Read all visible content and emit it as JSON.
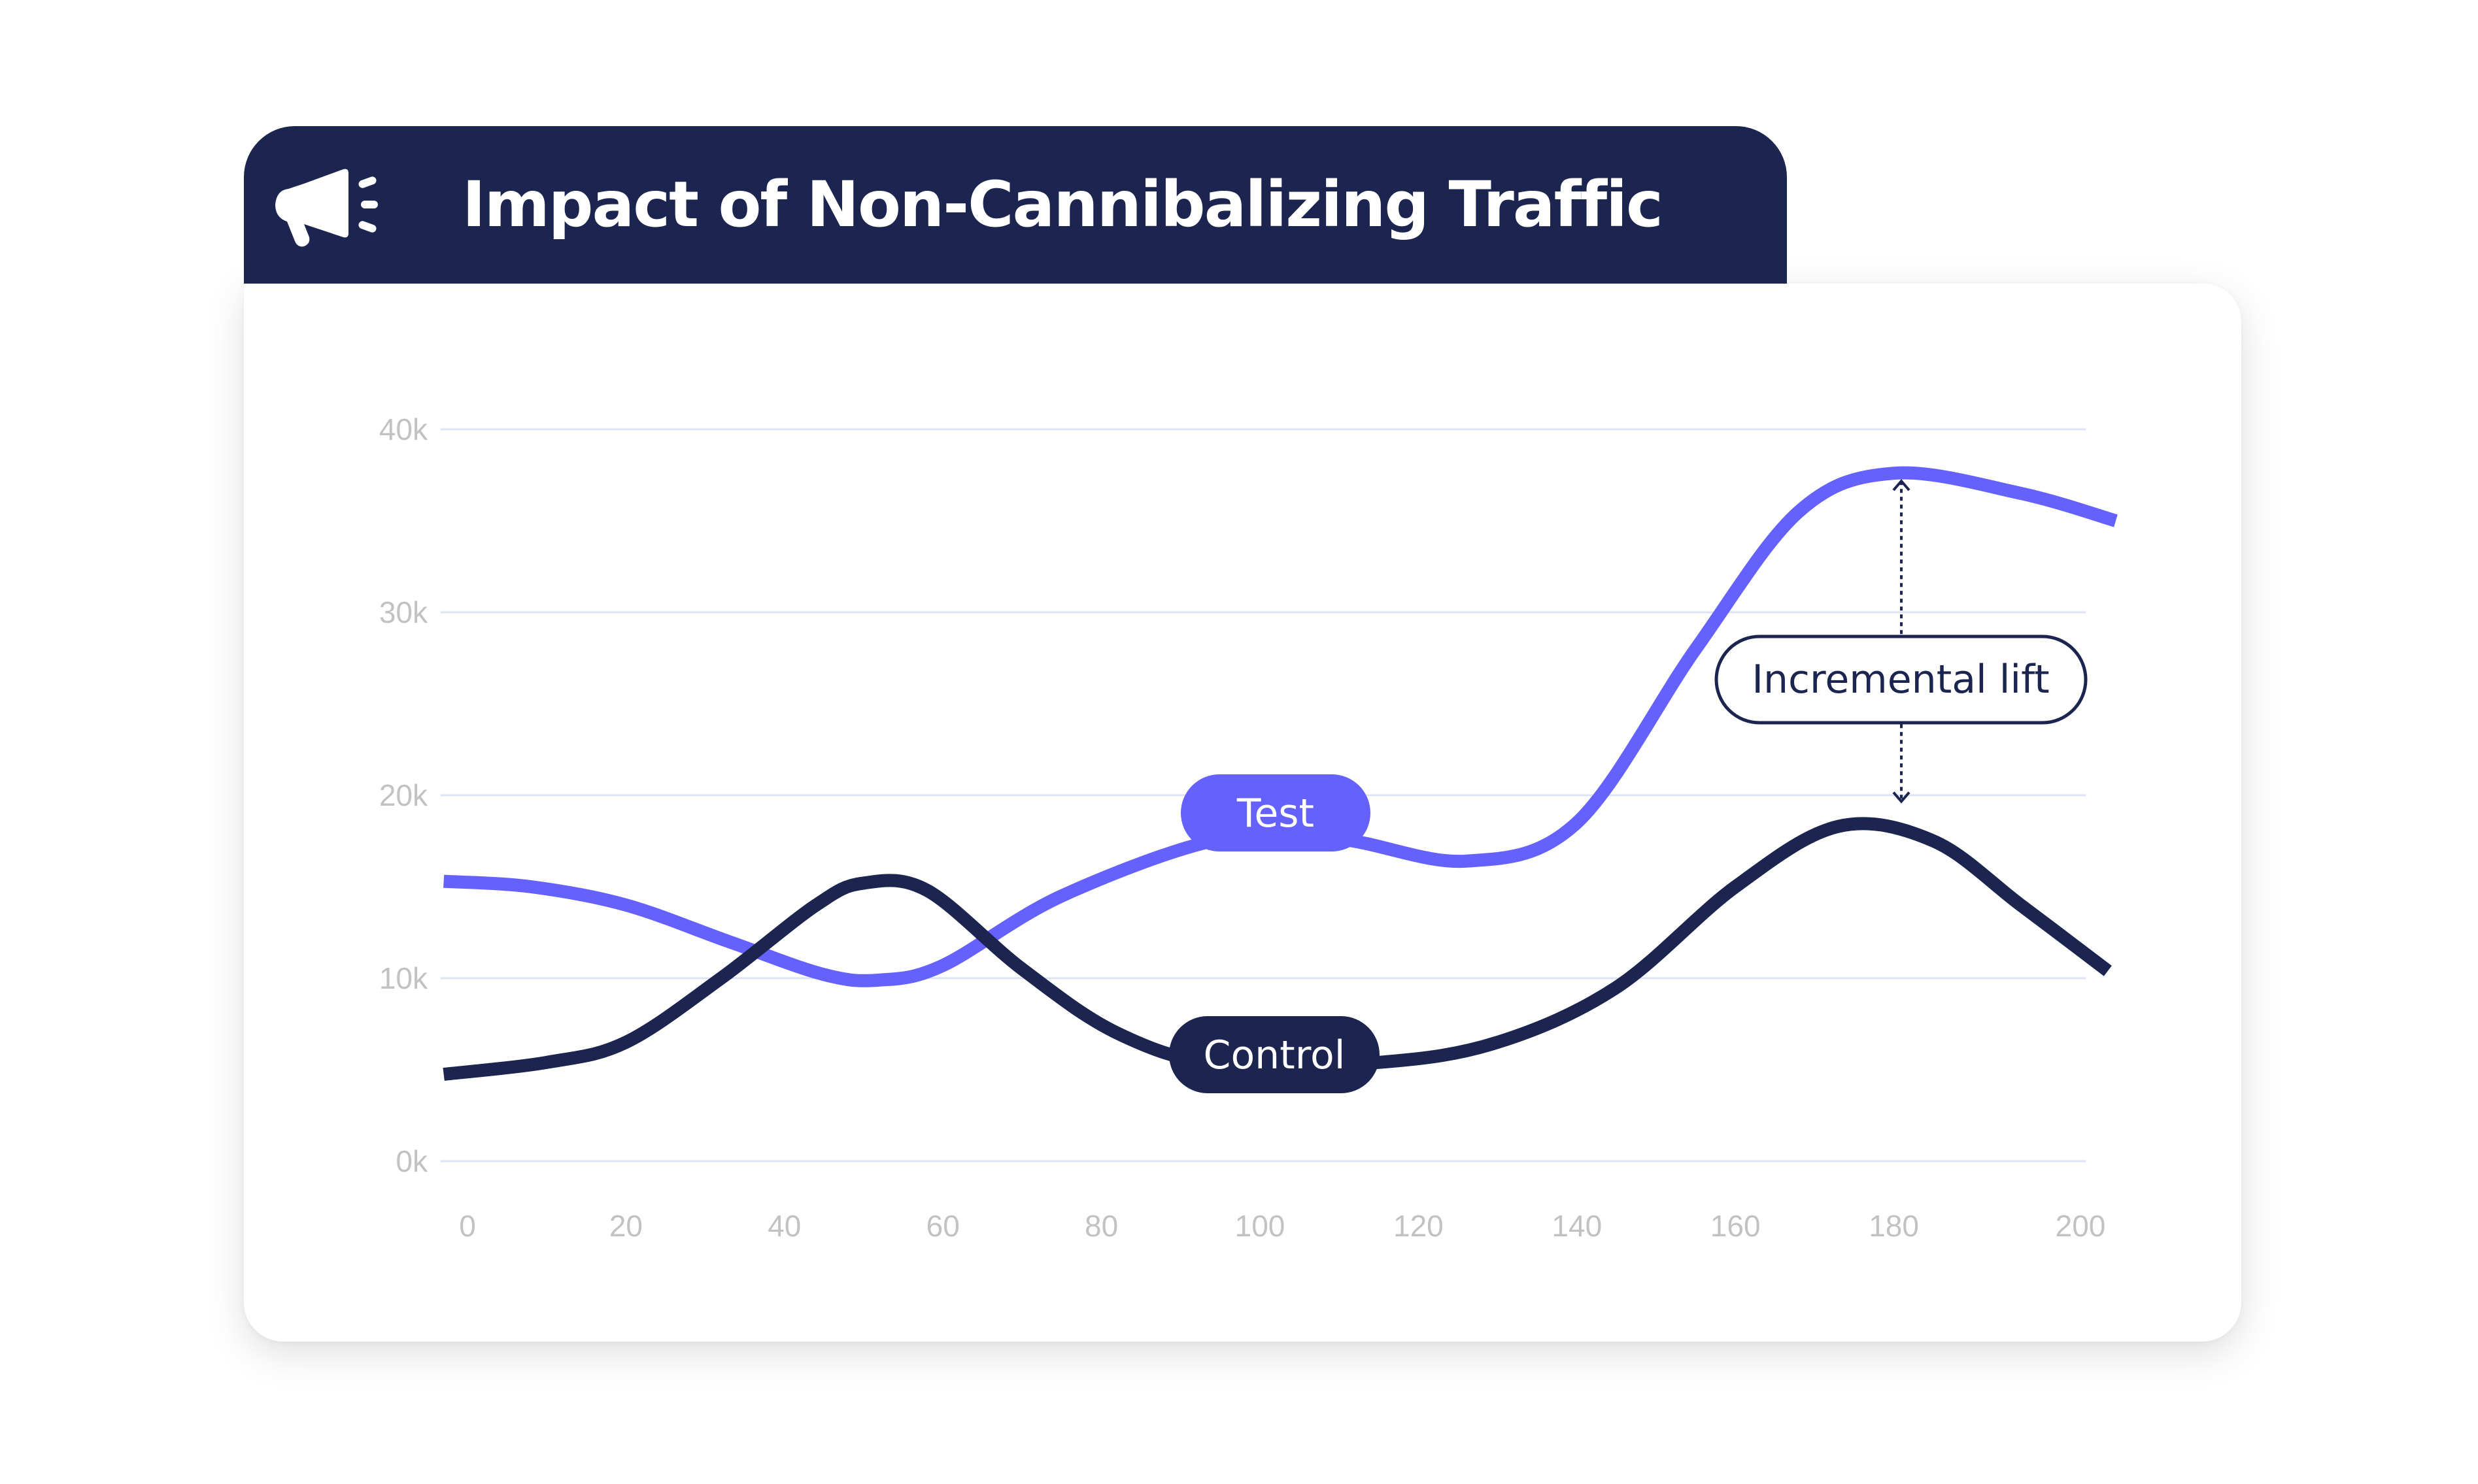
{
  "header": {
    "icon": "megaphone-icon",
    "title": "Impact of Non-Cannibalizing Traffic"
  },
  "colors": {
    "header_bg": "#1B2550",
    "test": "#6461FC",
    "control": "#1B2550",
    "grid": "#DCE3F3",
    "tick": "#C2C2C2"
  },
  "chart_data": {
    "type": "line",
    "title": "Impact of Non-Cannibalizing Traffic",
    "xlabel": "",
    "ylabel": "",
    "xlim": [
      0,
      200
    ],
    "ylim": [
      0,
      40000
    ],
    "grid": true,
    "x_ticks": [
      "0",
      "20",
      "40",
      "60",
      "80",
      "100",
      "120",
      "140",
      "160",
      "180",
      "200"
    ],
    "y_ticks": [
      "0k",
      "10k",
      "20k",
      "30k",
      "40k"
    ],
    "series": [
      {
        "name": "Test",
        "label": "Test",
        "x": [
          -3,
          8,
          20,
          33,
          45,
          52,
          60,
          75,
          95,
          110,
          126,
          140,
          155,
          168,
          180,
          196,
          208
        ],
        "values": [
          15300,
          15000,
          14000,
          12000,
          10200,
          9900,
          10700,
          14500,
          17600,
          17600,
          16400,
          18500,
          28000,
          35500,
          37600,
          36500,
          35000
        ]
      },
      {
        "name": "Control",
        "label": "Control",
        "x": [
          -3,
          10,
          20,
          32,
          44,
          50,
          58,
          70,
          82,
          95,
          115,
          130,
          145,
          160,
          173,
          185,
          196,
          207
        ],
        "values": [
          4750,
          5400,
          6500,
          10000,
          14000,
          15200,
          14800,
          10500,
          7000,
          5300,
          5400,
          6500,
          9500,
          15000,
          18300,
          17500,
          14000,
          10400
        ]
      }
    ],
    "annotations": [
      {
        "text": "Incremental lift",
        "type": "double-arrow",
        "x": 181,
        "from": 37600,
        "to": 18300
      }
    ]
  }
}
